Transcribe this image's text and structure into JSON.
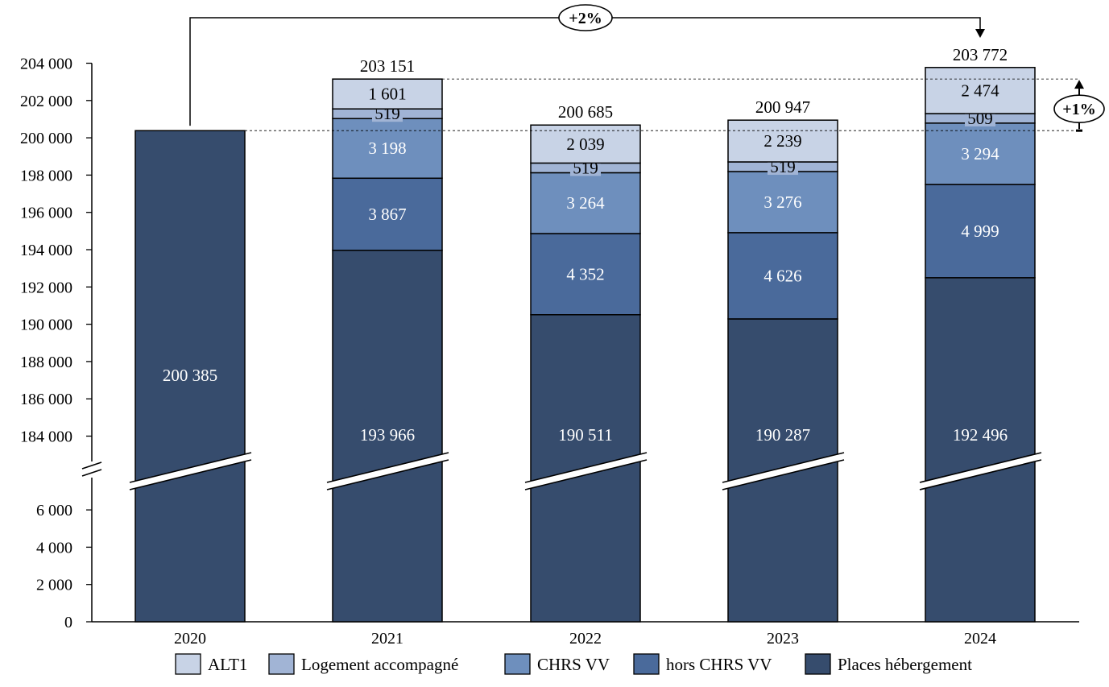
{
  "chart_data": {
    "type": "bar",
    "stacked": true,
    "categories": [
      "2020",
      "2021",
      "2022",
      "2023",
      "2024"
    ],
    "series": [
      {
        "name": "Places hébergement",
        "color": "#364c6d",
        "values": [
          200385,
          193966,
          190511,
          190287,
          192496
        ],
        "labels": [
          "200 385",
          "193 966",
          "190 511",
          "190 287",
          "192 496"
        ]
      },
      {
        "name": "hors CHRS VV",
        "color": "#4a6a9b",
        "values": [
          0,
          3867,
          4352,
          4626,
          4999
        ],
        "labels": [
          "",
          "3 867",
          "4 352",
          "4 626",
          "4 999"
        ]
      },
      {
        "name": "CHRS VV",
        "color": "#6e8fbd",
        "values": [
          0,
          3198,
          3264,
          3276,
          3294
        ],
        "labels": [
          "",
          "3 198",
          "3 264",
          "3 276",
          "3 294"
        ]
      },
      {
        "name": "Logement accompagné",
        "color": "#a1b4d5",
        "values": [
          0,
          519,
          519,
          519,
          509
        ],
        "labels": [
          "",
          "519",
          "519",
          "519",
          "509"
        ]
      },
      {
        "name": "ALT1",
        "color": "#c8d3e6",
        "values": [
          0,
          1601,
          2039,
          2239,
          2474
        ],
        "labels": [
          "",
          "1 601",
          "2 039",
          "2 239",
          "2 474"
        ]
      }
    ],
    "totals": [
      "",
      "203 151",
      "200 685",
      "200 947",
      "203 772"
    ],
    "y_ticks_upper": [
      184000,
      186000,
      188000,
      190000,
      192000,
      194000,
      196000,
      198000,
      200000,
      202000,
      204000
    ],
    "y_ticks_upper_labels": [
      "184 000",
      "186 000",
      "188 000",
      "190 000",
      "192 000",
      "194 000",
      "196 000",
      "198 000",
      "200 000",
      "202 000",
      "204 000"
    ],
    "y_ticks_lower": [
      0,
      2000,
      4000,
      6000
    ],
    "y_ticks_lower_labels": [
      "0",
      "2 000",
      "4 000",
      "6 000"
    ],
    "axis_break": true,
    "ylim_upper": [
      183000,
      204000
    ],
    "ylim_lower": [
      0,
      7000
    ],
    "legend_position": "bottom",
    "legend_order": [
      "ALT1",
      "Logement accompagné",
      "CHRS VV",
      "hors CHRS VV",
      "Places hébergement"
    ],
    "annotations": {
      "growth_total": "+2%",
      "growth_upper": "+1%"
    }
  }
}
